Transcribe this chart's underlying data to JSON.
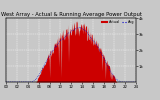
{
  "title": "West Array - Actual & Running Average Power Output",
  "bg_color": "#c8c8c8",
  "plot_bg_color": "#c8c8c8",
  "bar_color": "#cc0000",
  "avg_line_color": "#0000cc",
  "legend_actual_color": "#cc0000",
  "legend_avg_color": "#0000cc",
  "grid_color": "#ffffff",
  "grid_linestyle": "--",
  "n_points": 288,
  "peak_value": 3800,
  "solar_start": 5.5,
  "solar_end": 20.5,
  "ylim": [
    0,
    4000
  ],
  "xlim": [
    0,
    288
  ],
  "yticks": [
    1000,
    2000,
    3000,
    4000
  ],
  "ylabel_right_values": [
    "1k",
    "2k",
    "3k",
    "4k"
  ],
  "title_fontsize": 3.8,
  "axis_fontsize": 2.8,
  "legend_fontsize": 2.5
}
